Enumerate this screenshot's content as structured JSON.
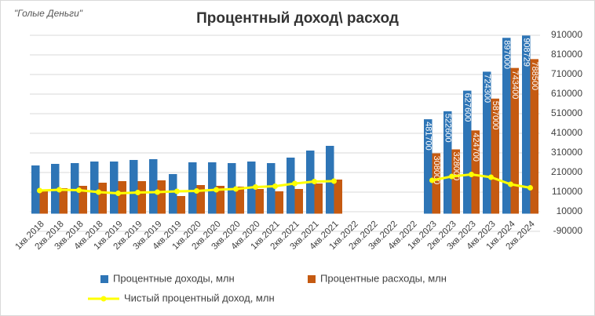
{
  "chart_data": {
    "type": "bar",
    "title": "Процентный доход\\ расход",
    "watermark": "\"Голые Деньги\"",
    "categories": [
      "1кв.2018",
      "2кв.2018",
      "3кв.2018",
      "4кв.2018",
      "1кв.2019",
      "2кв.2019",
      "3кв.2019",
      "4кв.2019",
      "1кв.2020",
      "2кв.2020",
      "3кв.2020",
      "4кв.2020",
      "1кв.2021",
      "2кв.2021",
      "3кв.2021",
      "4кв.2021",
      "1кв.2022",
      "2кв.2022",
      "3кв.2022",
      "4кв.2022",
      "1кв.2023",
      "2кв.2023",
      "3кв.2023",
      "4кв.2023",
      "1кв.2024",
      "2кв.2024"
    ],
    "series": [
      {
        "name": "Процентные доходы, млн",
        "type": "bar",
        "color": "#2e75b6",
        "values": [
          246000,
          254000,
          258000,
          266000,
          266000,
          274000,
          278000,
          202000,
          262000,
          262000,
          258000,
          266000,
          258000,
          286000,
          322000,
          346000,
          null,
          null,
          null,
          null,
          481700,
          522600,
          627600,
          724300,
          897000,
          908729
        ]
      },
      {
        "name": "Процентные расходы, млн",
        "type": "bar",
        "color": "#c55a11",
        "values": [
          122000,
          130000,
          142000,
          158000,
          166000,
          166000,
          170000,
          90000,
          146000,
          142000,
          138000,
          126000,
          114000,
          126000,
          154000,
          174000,
          null,
          null,
          null,
          null,
          308000,
          328000,
          424700,
          587000,
          743400,
          788500
        ]
      },
      {
        "name": "Чистый процентный доход, млн",
        "type": "line",
        "color": "#ffff00",
        "values": [
          118000,
          122000,
          120000,
          110000,
          104000,
          108000,
          110000,
          114000,
          116000,
          122000,
          126000,
          136000,
          140000,
          154000,
          164000,
          166000,
          null,
          null,
          null,
          null,
          170000,
          190000,
          200000,
          186000,
          150000,
          132000
        ]
      }
    ],
    "ylim": [
      -90000,
      910000
    ],
    "yticks": [
      -90000,
      10000,
      110000,
      210000,
      310000,
      410000,
      510000,
      610000,
      710000,
      810000,
      910000
    ],
    "grid": true
  }
}
